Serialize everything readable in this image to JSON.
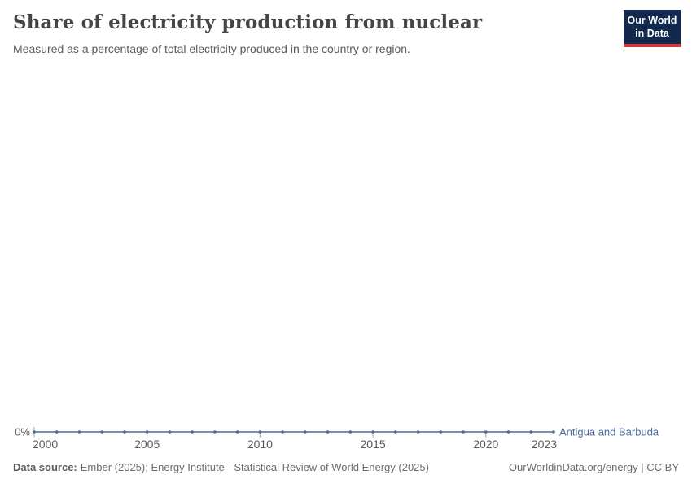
{
  "header": {
    "title": "Share of electricity production from nuclear",
    "subtitle": "Measured as a percentage of total electricity produced in the country or region."
  },
  "logo": {
    "line1": "Our World",
    "line2": "in Data",
    "bg_color": "#12294D",
    "bar_color": "#D7343C"
  },
  "footer": {
    "source_label": "Data source:",
    "source_text": "Ember (2025); Energy Institute - Statistical Review of World Energy (2025)",
    "right_text": "OurWorldinData.org/energy | CC BY"
  },
  "colors": {
    "line": "#4C6A9C",
    "axis_text": "#5A5A5A",
    "tick_mark": "#A0A6AD"
  },
  "chart_data": {
    "type": "line",
    "title": "Share of electricity production from nuclear",
    "subtitle": "Measured as a percentage of total electricity produced in the country or region.",
    "xlabel": "",
    "ylabel": "",
    "grid": false,
    "legend": "inline-right",
    "xlim": [
      2000,
      2023
    ],
    "ylim": [
      0,
      0
    ],
    "x": [
      2000,
      2001,
      2002,
      2003,
      2004,
      2005,
      2006,
      2007,
      2008,
      2009,
      2010,
      2011,
      2012,
      2013,
      2014,
      2015,
      2016,
      2017,
      2018,
      2019,
      2020,
      2021,
      2022,
      2023
    ],
    "series": [
      {
        "name": "Antigua and Barbuda",
        "color": "#4C6A9C",
        "values": [
          0,
          0,
          0,
          0,
          0,
          0,
          0,
          0,
          0,
          0,
          0,
          0,
          0,
          0,
          0,
          0,
          0,
          0,
          0,
          0,
          0,
          0,
          0,
          0
        ]
      }
    ],
    "x_tick_labels": [
      "2000",
      "2005",
      "2010",
      "2015",
      "2020",
      "2023"
    ],
    "x_tick_marks": [
      2000,
      2005,
      2010,
      2015,
      2020
    ],
    "y_ticks": [
      {
        "value": 0,
        "label": "0%"
      }
    ]
  }
}
